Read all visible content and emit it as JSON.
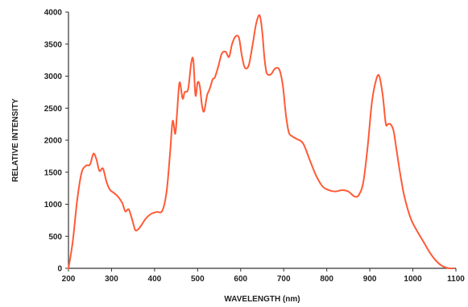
{
  "chart_data": {
    "type": "line",
    "title": "",
    "xlabel": "WAVELENGTH (nm)",
    "ylabel": "RELATIVE INTENSITY",
    "xlim": [
      200,
      1100
    ],
    "ylim": [
      0,
      4000
    ],
    "x_ticks": [
      200,
      300,
      400,
      500,
      600,
      700,
      800,
      900,
      1000,
      1100
    ],
    "y_ticks": [
      0,
      500,
      1000,
      1500,
      2000,
      2500,
      3000,
      3500,
      4000
    ],
    "grid": false,
    "legend": "none",
    "series_color": "#ff5a36",
    "series": [
      {
        "x": [
          200,
          210,
          220,
          230,
          240,
          250,
          258,
          265,
          272,
          280,
          288,
          296,
          305,
          315,
          325,
          332,
          340,
          348,
          355,
          362,
          370,
          380,
          392,
          405,
          418,
          428,
          436,
          442,
          448,
          452,
          458,
          465,
          470,
          478,
          485,
          490,
          495,
          500,
          505,
          510,
          515,
          522,
          528,
          535,
          540,
          548,
          556,
          565,
          573,
          580,
          588,
          596,
          602,
          608,
          614,
          620,
          628,
          636,
          644,
          650,
          655,
          660,
          666,
          672,
          680,
          690,
          698,
          705,
          712,
          720,
          730,
          745,
          760,
          775,
          790,
          805,
          820,
          835,
          850,
          865,
          875,
          885,
          895,
          905,
          915,
          922,
          930,
          937,
          942,
          948,
          955,
          962,
          970,
          980,
          995,
          1010,
          1025,
          1040,
          1055,
          1070,
          1085,
          1095
        ],
        "values": [
          0,
          420,
          1050,
          1480,
          1600,
          1620,
          1790,
          1700,
          1520,
          1560,
          1360,
          1230,
          1180,
          1120,
          1020,
          890,
          920,
          760,
          600,
          610,
          680,
          780,
          850,
          880,
          900,
          1200,
          1800,
          2300,
          2100,
          2400,
          2900,
          2650,
          2750,
          2800,
          3200,
          3250,
          2700,
          2900,
          2850,
          2550,
          2450,
          2700,
          2800,
          2950,
          2980,
          3150,
          3350,
          3380,
          3300,
          3500,
          3620,
          3600,
          3350,
          3160,
          3120,
          3200,
          3500,
          3820,
          3950,
          3700,
          3300,
          3060,
          3020,
          3040,
          3120,
          3100,
          2850,
          2400,
          2120,
          2060,
          2020,
          1950,
          1700,
          1450,
          1280,
          1220,
          1200,
          1220,
          1200,
          1120,
          1150,
          1350,
          1900,
          2600,
          2950,
          3000,
          2700,
          2260,
          2250,
          2250,
          2150,
          1850,
          1500,
          1130,
          780,
          580,
          410,
          240,
          110,
          30,
          0,
          0
        ]
      }
    ]
  }
}
